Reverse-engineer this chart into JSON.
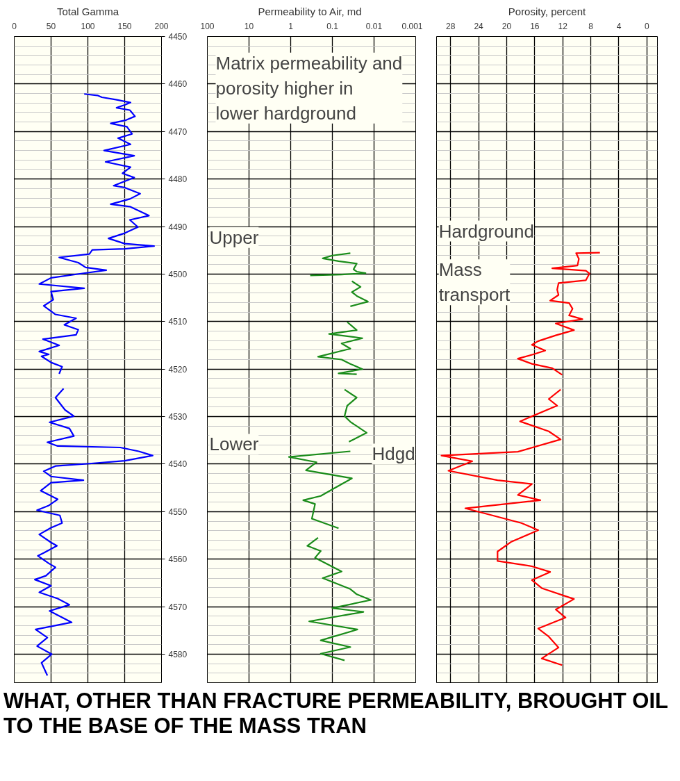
{
  "chart_data": [
    {
      "type": "line",
      "orientation": "horizontal",
      "title": "Total Gamma",
      "xlim": [
        0,
        200
      ],
      "xticks": [
        0,
        50,
        100,
        150,
        200
      ],
      "ylim": [
        4586,
        4450
      ],
      "yticks": [
        4450,
        4460,
        4470,
        4480,
        4490,
        4500,
        4510,
        4520,
        4530,
        4540,
        4550,
        4560,
        4570,
        4580
      ],
      "grid": true,
      "series": [
        {
          "color": "#0000ff",
          "values": [
            95,
            113,
            119,
            138,
            158,
            150,
            139,
            157,
            164,
            152,
            131,
            153,
            160,
            141,
            158,
            122,
            163,
            124,
            158,
            147,
            163,
            135,
            150,
            171,
            157,
            131,
            157,
            172,
            183,
            157,
            168,
            150,
            128,
            150,
            190,
            150,
            106,
            102,
            61,
            87,
            97,
            125,
            91,
            50,
            34,
            95,
            50,
            53,
            40,
            56,
            84,
            68,
            87,
            84,
            39,
            61,
            34,
            47,
            37,
            50,
            65,
            61,
            null,
            67,
            56,
            69,
            81,
            48,
            75,
            81,
            45,
            59,
            144,
            169,
            188,
            150,
            102,
            56,
            40,
            50,
            94,
            50,
            36,
            59,
            47,
            31,
            62,
            65,
            50,
            34,
            50,
            58,
            40,
            32,
            47,
            56,
            43,
            28,
            50,
            34,
            59,
            75,
            48,
            78,
            29,
            45,
            31,
            51,
            37,
            45
          ],
          "x": [
            4462.1,
            4462.4,
            4462.8,
            4463.3,
            4463.9,
            4464.4,
            4465.0,
            4465.5,
            4466.8,
            4467.6,
            4468.3,
            4469.0,
            4470.5,
            4471.4,
            4472.7,
            4474.0,
            4475.1,
            4476.4,
            4477.5,
            4478.8,
            4479.7,
            4481.4,
            4481.8,
            4483.1,
            4484.2,
            4485.3,
            4485.8,
            4486.9,
            4487.7,
            4488.6,
            4490.1,
            4491.4,
            4492.5,
            4493.6,
            4494.1,
            4494.7,
            4494.9,
            4495.8,
            4496.5,
            4497.6,
            4498.6,
            4499.2,
            4499.9,
            4500.8,
            4502.1,
            4503.0,
            4503.7,
            4505.4,
            4506.7,
            4508.5,
            4509.3,
            4510.7,
            4511.7,
            4512.8,
            4513.7,
            4515.0,
            4516.3,
            4516.9,
            4517.3,
            4518.6,
            4519.5,
            4521.0,
            null,
            4524.1,
            4526.0,
            4528.6,
            4529.9,
            4531.2,
            4532.5,
            4534.1,
            4535.4,
            4536.2,
            4536.5,
            4537.3,
            4538.2,
            4539.3,
            4539.9,
            4540.4,
            4541.5,
            4542.6,
            4543.4,
            4543.9,
            4545.6,
            4547.4,
            4548.7,
            4549.7,
            4550.8,
            4552.4,
            4553.4,
            4554.8,
            4556.5,
            4557.2,
            4558.7,
            4559.3,
            4560.9,
            4561.7,
            4563.5,
            4564.3,
            4565.6,
            4567.0,
            4568.3,
            4569.6,
            4570.9,
            4573.3,
            4574.8,
            4576.5,
            4578.3,
            4580.0,
            4581.8,
            4584.5
          ]
        }
      ]
    },
    {
      "type": "line",
      "orientation": "horizontal",
      "title": "Permeability to Air,  md",
      "log": "x",
      "xlim": [
        100,
        0.001
      ],
      "xticks": [
        100,
        10,
        1,
        0.1,
        0.01,
        0.001
      ],
      "ylim": [
        4586,
        4450
      ],
      "yticks": [
        4450,
        4460,
        4470,
        4480,
        4490,
        4500,
        4510,
        4520,
        4530,
        4540,
        4550,
        4560,
        4570,
        4580
      ],
      "grid": true,
      "tick_labels": "x",
      "annotations": [
        "Matrix permeability and porosity higher in lower hardground",
        "Upper",
        "Lower",
        "Hdgd"
      ],
      "series": [
        {
          "color": "#1a8c1a",
          "values": [
            0.037,
            0.1,
            0.17,
            0.071,
            0.026,
            0.031,
            0.026,
            0.016,
            0.06,
            0.34,
            null,
            0.034,
            0.021,
            0.034,
            0.025,
            0.014,
            0.037,
            null,
            0.044,
            0.026,
            0.12,
            0.019,
            0.06,
            0.037,
            0.22,
            0.06,
            0.037,
            0.019,
            0.071,
            0.026,
            null,
            0.051,
            0.026,
            0.044,
            0.051,
            0.037,
            0.015,
            0.04,
            null,
            0.037,
            1.1,
            0.24,
            0.43,
            0.034,
            0.1,
            0.19,
            0.5,
            0.26,
            0.31,
            0.071,
            null,
            0.22,
            0.4,
            0.19,
            0.26,
            0.06,
            0.17,
            0.037,
            0.026,
            0.012,
            0.1,
            0.018,
            0.36,
            0.025,
            0.19,
            0.037,
            0.19,
            0.051
          ],
          "x": [
            4495.6,
            4496.1,
            4496.7,
            4497.3,
            4497.8,
            4499.0,
            4499.5,
            4499.8,
            4500.1,
            4500.3,
            null,
            4501.5,
            4502.7,
            4503.8,
            4504.7,
            4505.8,
            4506.8,
            null,
            4510.1,
            4511.8,
            4512.6,
            4513.5,
            4514.6,
            4515.7,
            4517.4,
            4518.0,
            4518.9,
            4520.0,
            4520.9,
            4521.1,
            null,
            4524.3,
            4526.0,
            4527.7,
            4529.9,
            4531.1,
            4533.4,
            4535.3,
            null,
            4537.3,
            4538.5,
            4539.6,
            4541.3,
            4543.0,
            4545.3,
            4546.7,
            4547.6,
            4548.4,
            4551.5,
            4553.5,
            null,
            4555.5,
            4557.2,
            4558.3,
            4559.7,
            4562.6,
            4564.0,
            4566.3,
            4567.4,
            4568.6,
            4570.3,
            4571.1,
            4573.1,
            4574.8,
            4577.1,
            4578.5,
            4579.9,
            4581.3
          ]
        }
      ]
    },
    {
      "type": "line",
      "orientation": "horizontal",
      "title": "Porosity, percent",
      "xlim": [
        30,
        -1.5
      ],
      "xticks": [
        28,
        24,
        20,
        16,
        12,
        8,
        4,
        0
      ],
      "ylim": [
        4586,
        4450
      ],
      "yticks": [
        4450,
        4460,
        4470,
        4480,
        4490,
        4500,
        4510,
        4520,
        4530,
        4540,
        4550,
        4560,
        4570,
        4580
      ],
      "grid": true,
      "tick_labels": "x",
      "annotations": [
        "Hardground",
        "Mass transport"
      ],
      "series": [
        {
          "color": "#ff0000",
          "values": [
            6.7,
            10.1,
            9.7,
            9.9,
            13.5,
            8.7,
            8.2,
            8.7,
            12.6,
            12.8,
            12.6,
            13.8,
            11.1,
            10.6,
            11.1,
            9.2,
            13.0,
            10.4,
            13.0,
            15.5,
            16.4,
            14.5,
            16.2,
            18.4,
            16.4,
            13.5,
            12.1,
            null,
            12.3,
            14.0,
            12.8,
            18.1,
            14.0,
            12.3,
            18.4,
            29.3,
            24.9,
            28.3,
            21.3,
            16.4,
            18.4,
            15.2,
            25.9,
            17.9,
            15.5,
            19.4,
            21.3,
            21.3,
            16.4,
            13.8,
            16.4,
            15.0,
            10.4,
            13.0,
            11.6,
            15.5,
            14.0,
            12.6,
            15.0,
            12.1
          ],
          "x": [
            4495.5,
            4495.6,
            4496.8,
            4498.2,
            4498.8,
            4499.3,
            4499.9,
            4501.3,
            4501.9,
            4503.3,
            4504.4,
            4505.6,
            4506.1,
            4507.3,
            4508.7,
            4509.5,
            4510.4,
            4511.8,
            4512.9,
            4514.1,
            4514.9,
            4516.1,
            4516.9,
            4517.8,
            4518.9,
            4519.8,
            4521.2,
            null,
            4524.3,
            4526.3,
            4527.7,
            4531.0,
            4533.1,
            4534.8,
            4537.4,
            4538.2,
            4539.4,
            4541.4,
            4543.4,
            4544.2,
            4546.5,
            4547.6,
            4549.3,
            4552.4,
            4553.9,
            4556.4,
            4558.4,
            4560.4,
            4561.5,
            4562.7,
            4564.4,
            4566.1,
            4568.4,
            4570.6,
            4572.3,
            4574.6,
            4576.3,
            4578.6,
            4580.9,
            4582.3
          ]
        }
      ]
    },
    {
      "type": "other",
      "title": "WHAT, OTHER THAN FRACTURE PERMEABILITY, BROUGHT OIL TO THE BASE OF THE MASS TRAN"
    }
  ]
}
